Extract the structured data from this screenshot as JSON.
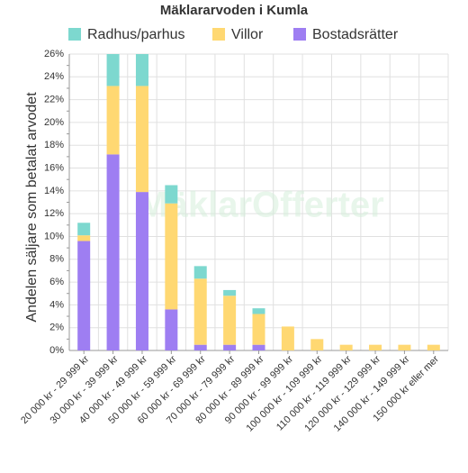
{
  "chart_data": {
    "type": "stacked_bar",
    "title": "Mäklararvoden i Kumla",
    "y_label": "Andelen säljare som betalat arvodet",
    "watermark": "MäklarOfferter",
    "categories": [
      "20 000 kr - 29 999 kr",
      "30 000 kr - 39 999 kr",
      "40 000 kr - 49 999 kr",
      "50 000 kr - 59 999 kr",
      "60 000 kr - 69 999 kr",
      "70 000 kr - 79 999 kr",
      "80 000 kr - 89 999 kr",
      "90 000 kr - 99 999 kr",
      "100 000 kr - 109 999 kr",
      "110 000 kr - 119 999 kr",
      "120 000 kr - 129 999 kr",
      "140 000 kr - 149 999 kr",
      "150 000 kr eller mer"
    ],
    "series": [
      {
        "name": "Bostadsrätter",
        "color": "#9e7ef2",
        "values": [
          9.6,
          17.2,
          13.9,
          3.6,
          0.5,
          0.5,
          0.5,
          0,
          0,
          0,
          0,
          0,
          0
        ]
      },
      {
        "name": "Villor",
        "color": "#ffd872",
        "values": [
          0.5,
          6.0,
          9.3,
          9.3,
          5.8,
          4.3,
          2.7,
          2.1,
          1.0,
          0.5,
          0.5,
          0.5,
          0.5
        ]
      },
      {
        "name": "Radhus/parhus",
        "color": "#7dd8cf",
        "values": [
          1.1,
          2.8,
          2.8,
          1.6,
          1.1,
          0.5,
          0.5,
          0,
          0,
          0,
          0,
          0,
          0
        ]
      }
    ],
    "legend_order": [
      2,
      1,
      0
    ],
    "ylim": [
      0,
      26
    ],
    "yticks": [
      {
        "value": 0,
        "label": "0%"
      },
      {
        "value": 2,
        "label": "2%"
      },
      {
        "value": 4,
        "label": "4%"
      },
      {
        "value": 6,
        "label": "6%"
      },
      {
        "value": 8,
        "label": "8%"
      },
      {
        "value": 10,
        "label": "10%"
      },
      {
        "value": 12,
        "label": "12%"
      },
      {
        "value": 14,
        "label": "14%"
      },
      {
        "value": 16,
        "label": "16%"
      },
      {
        "value": 18,
        "label": "18%"
      },
      {
        "value": 20,
        "label": "20%"
      },
      {
        "value": 22,
        "label": "22%"
      },
      {
        "value": 24,
        "label": "24%"
      },
      {
        "value": 26,
        "label": "26%"
      }
    ],
    "grid": true
  }
}
